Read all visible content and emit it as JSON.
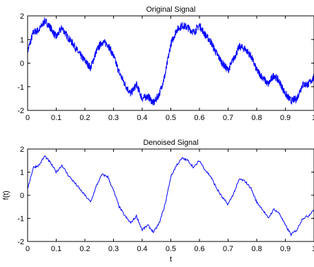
{
  "chart_data": [
    {
      "type": "line",
      "title": "Original Signal",
      "xlabel": "",
      "ylabel": "",
      "xlim": [
        0,
        1
      ],
      "ylim": [
        -2,
        2
      ],
      "xticks": [
        "0",
        "0.1",
        "0.2",
        "0.3",
        "0.4",
        "0.5",
        "0.6",
        "0.7",
        "0.8",
        "0.9",
        "1"
      ],
      "yticks": [
        "-2",
        "-1",
        "0",
        "1",
        "2"
      ],
      "grid": false,
      "color": "#0000ff",
      "series": [
        {
          "x": [
            0,
            0.02,
            0.04,
            0.06,
            0.08,
            0.1,
            0.12,
            0.14,
            0.16,
            0.18,
            0.2,
            0.22,
            0.24,
            0.26,
            0.28,
            0.3,
            0.32,
            0.34,
            0.36,
            0.38,
            0.4,
            0.42,
            0.44,
            0.46,
            0.48,
            0.5,
            0.52,
            0.54,
            0.56,
            0.58,
            0.6,
            0.62,
            0.64,
            0.66,
            0.68,
            0.7,
            0.72,
            0.74,
            0.76,
            0.78,
            0.8,
            0.82,
            0.84,
            0.86,
            0.88,
            0.9,
            0.92,
            0.94,
            0.96,
            0.98,
            1.0
          ],
          "y": [
            0.5,
            1.3,
            1.4,
            1.8,
            1.5,
            1.1,
            1.5,
            1.1,
            0.8,
            0.4,
            0.1,
            -0.2,
            0.5,
            0.9,
            0.8,
            0.3,
            -0.4,
            -0.9,
            -1.3,
            -0.9,
            -1.5,
            -1.4,
            -1.7,
            -1.3,
            -0.5,
            0.8,
            1.4,
            1.6,
            1.5,
            1.3,
            1.6,
            1.2,
            0.9,
            0.4,
            0.0,
            -0.3,
            0.2,
            0.7,
            0.6,
            0.3,
            -0.3,
            -0.6,
            -0.9,
            -0.5,
            -0.8,
            -1.3,
            -1.6,
            -1.5,
            -0.9,
            -0.9,
            -0.6
          ]
        }
      ]
    },
    {
      "type": "line",
      "title": "Denoised Signal",
      "xlabel": "t",
      "ylabel": "f(t)",
      "xlim": [
        0,
        1
      ],
      "ylim": [
        -2,
        2
      ],
      "xticks": [
        "0",
        "0.1",
        "0.2",
        "0.3",
        "0.4",
        "0.5",
        "0.6",
        "0.7",
        "0.8",
        "0.9",
        "1"
      ],
      "yticks": [
        "-2",
        "-1",
        "0",
        "1",
        "2"
      ],
      "grid": false,
      "color": "#0000ff",
      "series": [
        {
          "x": [
            0,
            0.02,
            0.04,
            0.06,
            0.08,
            0.1,
            0.12,
            0.14,
            0.16,
            0.18,
            0.2,
            0.22,
            0.24,
            0.26,
            0.28,
            0.3,
            0.32,
            0.34,
            0.36,
            0.38,
            0.4,
            0.42,
            0.44,
            0.46,
            0.48,
            0.5,
            0.52,
            0.54,
            0.56,
            0.58,
            0.6,
            0.62,
            0.64,
            0.66,
            0.68,
            0.7,
            0.72,
            0.74,
            0.76,
            0.78,
            0.8,
            0.82,
            0.84,
            0.86,
            0.88,
            0.9,
            0.92,
            0.94,
            0.96,
            0.98,
            1.0
          ],
          "y": [
            0.3,
            1.2,
            1.3,
            1.7,
            1.4,
            1.0,
            1.3,
            0.9,
            0.6,
            0.3,
            0.0,
            -0.3,
            0.4,
            0.9,
            0.8,
            0.2,
            -0.5,
            -0.9,
            -1.2,
            -0.9,
            -1.5,
            -1.3,
            -1.6,
            -1.2,
            -0.4,
            0.8,
            1.3,
            1.6,
            1.5,
            1.2,
            1.5,
            1.1,
            0.8,
            0.3,
            -0.1,
            -0.4,
            0.1,
            0.7,
            0.6,
            0.3,
            -0.3,
            -0.6,
            -1.0,
            -0.6,
            -0.8,
            -1.3,
            -1.7,
            -1.5,
            -1.0,
            -0.9,
            -0.6
          ]
        }
      ]
    }
  ]
}
